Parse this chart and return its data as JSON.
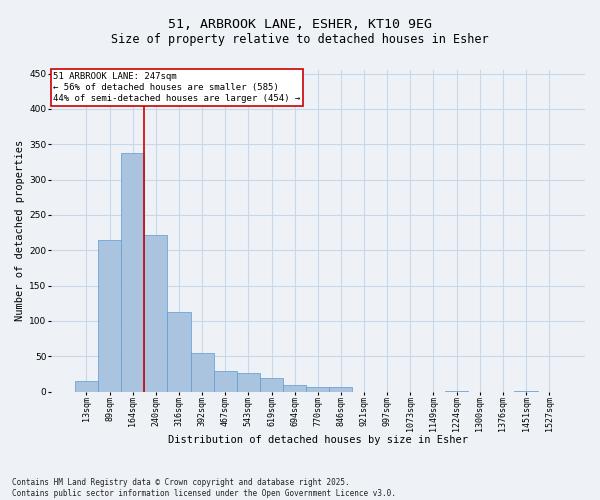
{
  "title_line1": "51, ARBROOK LANE, ESHER, KT10 9EG",
  "title_line2": "Size of property relative to detached houses in Esher",
  "xlabel": "Distribution of detached houses by size in Esher",
  "ylabel": "Number of detached properties",
  "categories": [
    "13sqm",
    "89sqm",
    "164sqm",
    "240sqm",
    "316sqm",
    "392sqm",
    "467sqm",
    "543sqm",
    "619sqm",
    "694sqm",
    "770sqm",
    "846sqm",
    "921sqm",
    "997sqm",
    "1073sqm",
    "1149sqm",
    "1224sqm",
    "1300sqm",
    "1376sqm",
    "1451sqm",
    "1527sqm"
  ],
  "values": [
    15,
    215,
    338,
    222,
    113,
    55,
    29,
    26,
    19,
    9,
    6,
    6,
    0,
    0,
    0,
    0,
    1,
    0,
    0,
    1,
    0
  ],
  "bar_color": "#aac4e0",
  "bar_edge_color": "#5b9bd5",
  "grid_color": "#c8d8e8",
  "background_color": "#eef2f7",
  "vline_x_index": 3,
  "vline_color": "#cc0000",
  "annotation_text": "51 ARBROOK LANE: 247sqm\n← 56% of detached houses are smaller (585)\n44% of semi-detached houses are larger (454) →",
  "annotation_box_color": "#ffffff",
  "annotation_border_color": "#cc0000",
  "ylim": [
    0,
    455
  ],
  "yticks": [
    0,
    50,
    100,
    150,
    200,
    250,
    300,
    350,
    400,
    450
  ],
  "footer_text": "Contains HM Land Registry data © Crown copyright and database right 2025.\nContains public sector information licensed under the Open Government Licence v3.0.",
  "title_fontsize": 9.5,
  "subtitle_fontsize": 8.5,
  "tick_fontsize": 6,
  "label_fontsize": 7.5,
  "annotation_fontsize": 6.5,
  "footer_fontsize": 5.5
}
